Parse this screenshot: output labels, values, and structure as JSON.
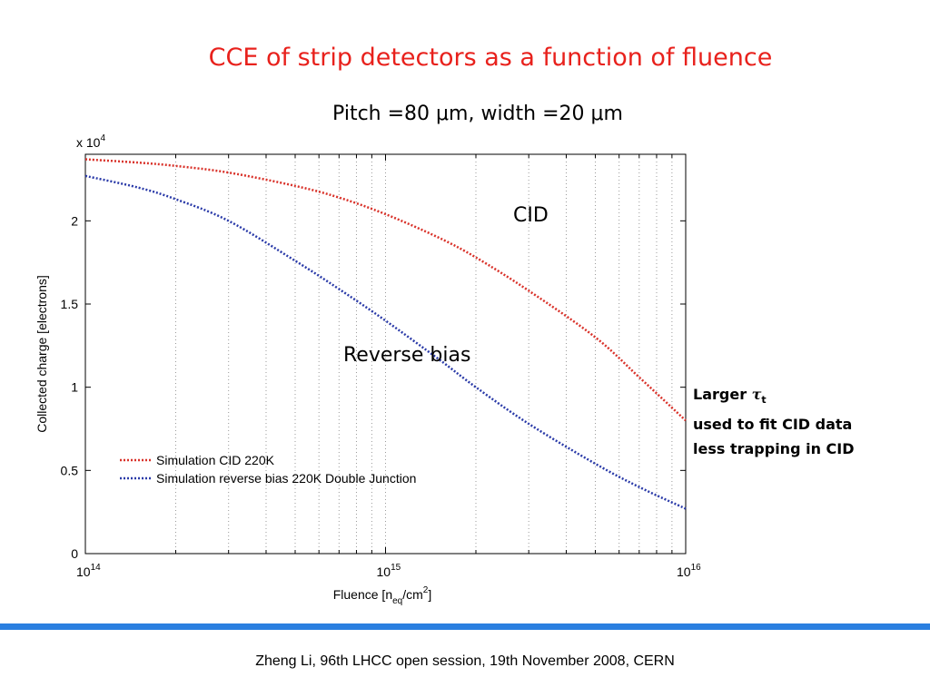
{
  "slide": {
    "title": "CCE of strip detectors as a function of fluence",
    "subtitle_prefix": "Pitch =80 ",
    "mu1": "μ",
    "subtitle_mid": "m, width =20 ",
    "mu2": "μ",
    "subtitle_suffix": "m",
    "note_larger": "Larger ",
    "note_tau": "τ",
    "note_tau_sub": "t",
    "note_line2": "used to fit CID data",
    "note_line3": "less trapping in CID",
    "footer": "Zheng Li, 96th LHCC open session, 19th November 2008, CERN",
    "colors": {
      "title": "#e8211c",
      "rule": "#2a7fe0"
    }
  },
  "chart_data": {
    "type": "line",
    "x_scale": "log",
    "xlim": [
      100000000000000.0,
      1e+16
    ],
    "ylim": [
      0,
      2.4
    ],
    "y_multiplier": "x 10",
    "y_multiplier_exp": "4",
    "x_ticks": [
      {
        "base": "10",
        "exp": "14"
      },
      {
        "base": "10",
        "exp": "15"
      },
      {
        "base": "10",
        "exp": "16"
      }
    ],
    "y_ticks": [
      "0",
      "0.5",
      "1",
      "1.5",
      "2"
    ],
    "y_tick_values": [
      0,
      0.5,
      1,
      1.5,
      2
    ],
    "xlabel_prefix": "Fluence [n",
    "xlabel_sub": "eq",
    "xlabel_mid": "/cm",
    "xlabel_sup": "2",
    "xlabel_suffix": "]",
    "ylabel": "Collected charge [electrons]",
    "grid": "vertical dotted",
    "legend_position": "lower-left",
    "annotations": [
      "CID",
      "Reverse bias"
    ],
    "series": [
      {
        "name": "Simulation CID 220K",
        "color": "#d9322a",
        "x": [
          100000000000000.0,
          150000000000000.0,
          200000000000000.0,
          300000000000000.0,
          500000000000000.0,
          700000000000000.0,
          1000000000000000.0,
          1500000000000000.0,
          2000000000000000.0,
          3000000000000000.0,
          5000000000000000.0,
          7000000000000000.0,
          1e+16
        ],
        "y": [
          2.37,
          2.35,
          2.33,
          2.29,
          2.21,
          2.14,
          2.04,
          1.9,
          1.78,
          1.58,
          1.3,
          1.06,
          0.8
        ]
      },
      {
        "name": "Simulation reverse bias 220K Double Junction",
        "color": "#2a3aa8",
        "x": [
          100000000000000.0,
          150000000000000.0,
          200000000000000.0,
          300000000000000.0,
          500000000000000.0,
          700000000000000.0,
          1000000000000000.0,
          1500000000000000.0,
          2000000000000000.0,
          3000000000000000.0,
          5000000000000000.0,
          7000000000000000.0,
          1e+16
        ],
        "y": [
          2.27,
          2.2,
          2.13,
          2.0,
          1.76,
          1.59,
          1.4,
          1.17,
          1.0,
          0.78,
          0.54,
          0.4,
          0.27
        ]
      }
    ]
  }
}
